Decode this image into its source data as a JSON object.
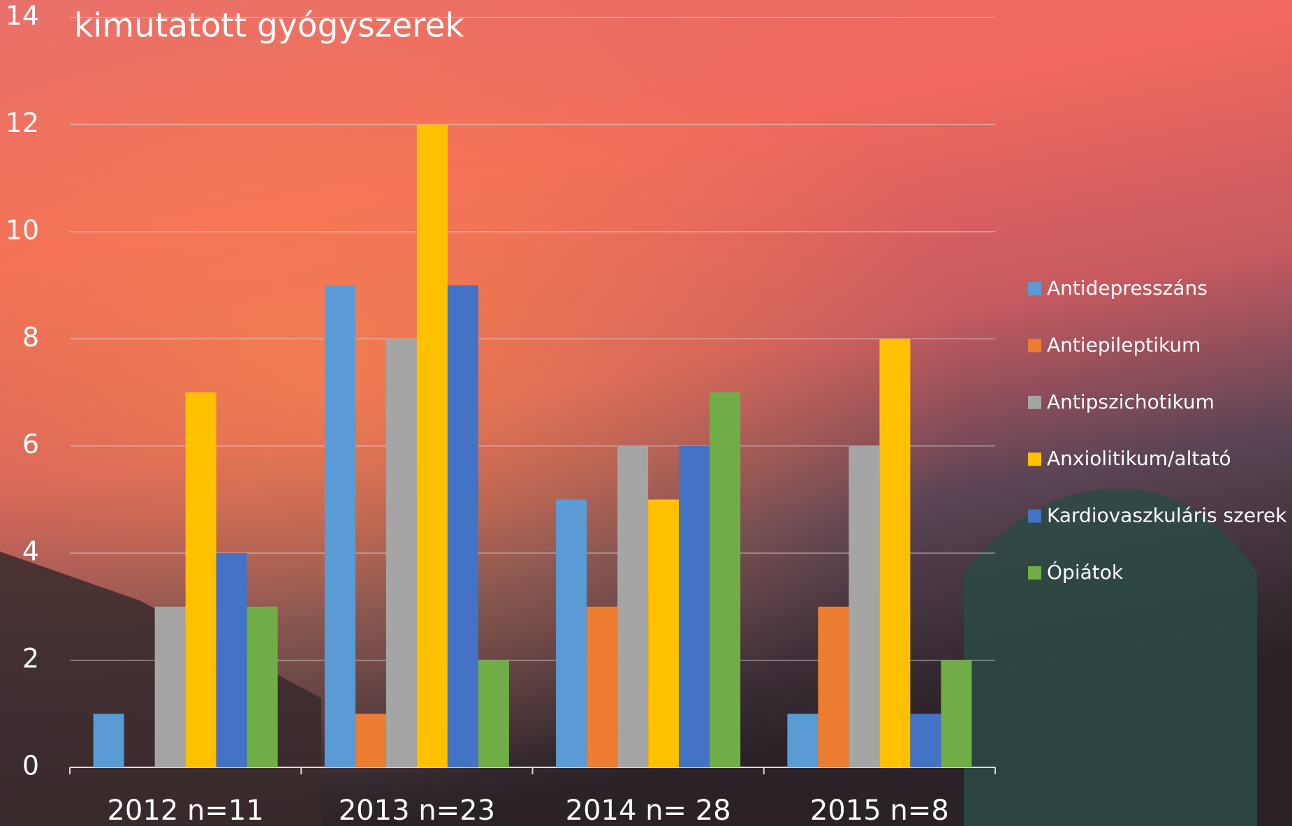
{
  "chart_data": {
    "type": "bar",
    "title": "kimutatott gyógyszerek",
    "categories": [
      "2012 n=11",
      "2013 n=23",
      "2014 n= 28",
      "2015 n=8"
    ],
    "series": [
      {
        "name": "Antidepresszáns",
        "color": "#5b9bd5",
        "values": [
          1,
          9,
          5,
          1
        ]
      },
      {
        "name": "Antiepileptikum",
        "color": "#ed7d31",
        "values": [
          0,
          1,
          3,
          3
        ]
      },
      {
        "name": "Antipszichotikum",
        "color": "#a5a5a5",
        "values": [
          3,
          8,
          6,
          6
        ]
      },
      {
        "name": "Anxiolitikum/altató",
        "color": "#ffc000",
        "values": [
          7,
          12,
          5,
          8
        ]
      },
      {
        "name": "Kardiovaszkuláris szerek",
        "color": "#4472c4",
        "values": [
          4,
          9,
          6,
          1
        ]
      },
      {
        "name": "Ópiátok",
        "color": "#70ad47",
        "values": [
          3,
          2,
          7,
          2
        ]
      }
    ],
    "ylim": [
      0,
      14
    ],
    "yticks": [
      0,
      2,
      4,
      6,
      8,
      10,
      12,
      14
    ],
    "grid": true,
    "legend": "right"
  }
}
